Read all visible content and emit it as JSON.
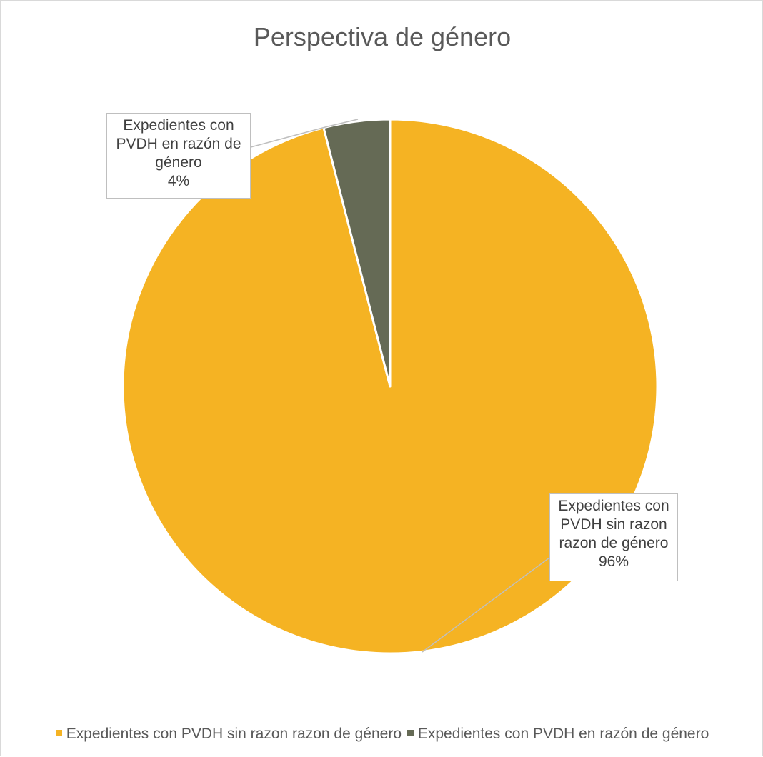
{
  "chart_data": {
    "type": "pie",
    "title": "Perspectiva de género",
    "categories": [
      "Expedientes con PVDH sin razon razon de género",
      "Expedientes con PVDH en razón de género"
    ],
    "values": [
      96,
      4
    ],
    "value_labels": [
      "96%",
      "4%"
    ],
    "data_label_lines": [
      [
        "Expedientes con",
        "PVDH sin razon",
        "razon de género"
      ],
      [
        "Expedientes con",
        "PVDH en razón de",
        "género"
      ]
    ],
    "colors": [
      "#F5B323",
      "#656A55"
    ],
    "legend_position": "bottom",
    "start_angle": "12 o'clock, clockwise"
  }
}
